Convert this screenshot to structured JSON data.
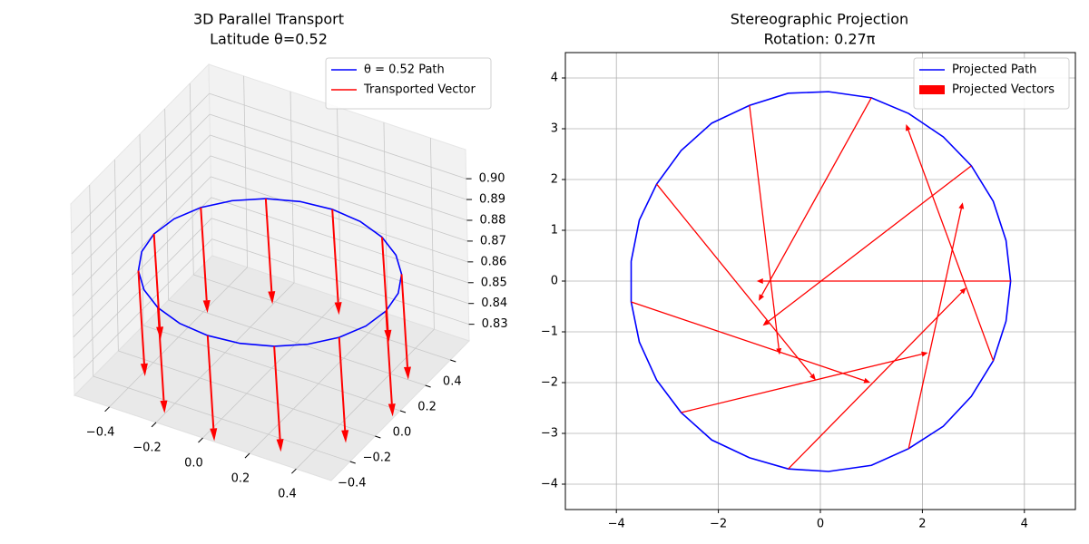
{
  "chart_data": [
    {
      "type": "line3d",
      "title": "3D Parallel Transport",
      "subtitle": "Latitude θ=0.52",
      "xlim": [
        -0.55,
        0.55
      ],
      "ylim": [
        -0.55,
        0.55
      ],
      "zlim": [
        0.822,
        0.914
      ],
      "xticks": [
        {
          "value": -0.4,
          "label": "−0.4"
        },
        {
          "value": -0.2,
          "label": "−0.2"
        },
        {
          "value": 0,
          "label": "0.0"
        },
        0.2,
        0.4
      ],
      "yticks": [
        {
          "value": -0.4,
          "label": "−0.4"
        },
        {
          "value": -0.2,
          "label": "−0.2"
        },
        {
          "value": 0,
          "label": "0.0"
        },
        0.2,
        0.4
      ],
      "zticks": [
        0.83,
        0.84,
        0.85,
        0.86,
        0.87,
        0.88,
        0.89,
        {
          "value": 0.9,
          "label": "0.90"
        }
      ],
      "legend": "upper right",
      "series": [
        {
          "name": "θ = 0.52 Path",
          "color": "#0000ff",
          "kind": "line",
          "x": [
            0.497,
            0.48,
            0.43,
            0.351,
            0.249,
            0.129,
            0,
            -0.129,
            -0.249,
            -0.351,
            -0.43,
            -0.48,
            -0.497,
            -0.48,
            -0.43,
            -0.351,
            -0.249,
            -0.129,
            0,
            0.129,
            0.249,
            0.351,
            0.43,
            0.48,
            0.497
          ],
          "y": [
            0,
            0.129,
            0.249,
            0.351,
            0.43,
            0.48,
            0.497,
            0.48,
            0.43,
            0.351,
            0.249,
            0.129,
            0,
            -0.129,
            -0.249,
            -0.351,
            -0.43,
            -0.48,
            -0.497,
            -0.48,
            -0.43,
            -0.351,
            -0.249,
            -0.129,
            0
          ],
          "z": [
            0.868,
            0.868,
            0.868,
            0.868,
            0.868,
            0.868,
            0.868,
            0.868,
            0.868,
            0.868,
            0.868,
            0.868,
            0.868,
            0.868,
            0.868,
            0.868,
            0.868,
            0.868,
            0.868,
            0.868,
            0.868,
            0.868,
            0.868,
            0.868,
            0.868
          ]
        },
        {
          "name": "Transported Vector",
          "color": "#ff0000",
          "kind": "quiver",
          "x": [
            0.497,
            0.43,
            0.249,
            0,
            -0.249,
            -0.43,
            -0.497,
            -0.43,
            -0.249,
            0,
            0.249,
            0.43
          ],
          "y": [
            0,
            0.249,
            0.43,
            0.497,
            0.43,
            0.249,
            0,
            -0.249,
            -0.43,
            -0.497,
            -0.43,
            -0.249
          ],
          "z": [
            0.868,
            0.868,
            0.868,
            0.868,
            0.868,
            0.868,
            0.868,
            0.868,
            0.868,
            0.868,
            0.868,
            0.868
          ],
          "u": [
            0.02,
            0.02,
            0.02,
            0.02,
            0.02,
            0.02,
            0.02,
            0.02,
            0.02,
            0.02,
            0.02,
            0.02
          ],
          "v": [
            0,
            0,
            0,
            0,
            0,
            0,
            0,
            0,
            0,
            0,
            0,
            0
          ],
          "w": [
            -0.05,
            -0.05,
            -0.05,
            -0.05,
            -0.05,
            -0.05,
            -0.05,
            -0.05,
            -0.05,
            -0.05,
            -0.05,
            -0.05
          ]
        }
      ]
    },
    {
      "type": "quiver",
      "title": "Stereographic Projection",
      "subtitle": "Rotation: 0.27π",
      "xlim": [
        -5,
        5
      ],
      "ylim": [
        -4.5,
        4.5
      ],
      "xticks": [
        {
          "value": -4,
          "label": "−4"
        },
        {
          "value": -2,
          "label": "−2"
        },
        0,
        2,
        4
      ],
      "yticks": [
        {
          "value": -4,
          "label": "−4"
        },
        {
          "value": -3,
          "label": "−3"
        },
        {
          "value": -2,
          "label": "−2"
        },
        {
          "value": -1,
          "label": "−1"
        },
        0,
        1,
        2,
        3,
        4
      ],
      "grid": true,
      "legend": "upper right",
      "series": [
        {
          "name": "Projected Path",
          "color": "#0000ff",
          "kind": "line",
          "x": [
            -3.71,
            -3.55,
            -3.21,
            -2.73,
            -2.13,
            -1.39,
            -0.63,
            0.16,
            1.0,
            1.73,
            2.41,
            2.96,
            3.39,
            3.64,
            3.73,
            3.64,
            3.39,
            2.96,
            2.41,
            1.73,
            1.0,
            0.16,
            -0.63,
            -1.39,
            -2.13,
            -2.73,
            -3.21,
            -3.55,
            -3.71,
            -3.71
          ],
          "y": [
            0.39,
            1.2,
            1.91,
            2.57,
            3.11,
            3.46,
            3.7,
            3.73,
            3.61,
            3.3,
            2.84,
            2.27,
            1.57,
            0.8,
            0,
            -0.79,
            -1.57,
            -2.27,
            -2.86,
            -3.3,
            -3.63,
            -3.75,
            -3.7,
            -3.48,
            -3.13,
            -2.59,
            -1.95,
            -1.2,
            -0.41,
            0.39
          ]
        },
        {
          "name": "Projected Vectors",
          "color": "#ff0000",
          "kind": "quiver",
          "x": [
            1.0,
            -1.39,
            -3.21,
            -3.71,
            -2.73,
            -0.63,
            1.73,
            3.39,
            3.73,
            2.96
          ],
          "y": [
            3.61,
            3.46,
            1.91,
            -0.41,
            -2.59,
            -3.7,
            -3.3,
            -1.57,
            0,
            2.27
          ],
          "u": [
            -2.21,
            0.59,
            3.12,
            4.69,
            4.84,
            3.49,
            1.06,
            -1.71,
            -4.98,
            -4.09
          ],
          "v": [
            -4.0,
            -4.91,
            -3.86,
            -1.59,
            1.18,
            3.57,
            4.85,
            4.66,
            0,
            -3.15
          ]
        }
      ]
    }
  ]
}
